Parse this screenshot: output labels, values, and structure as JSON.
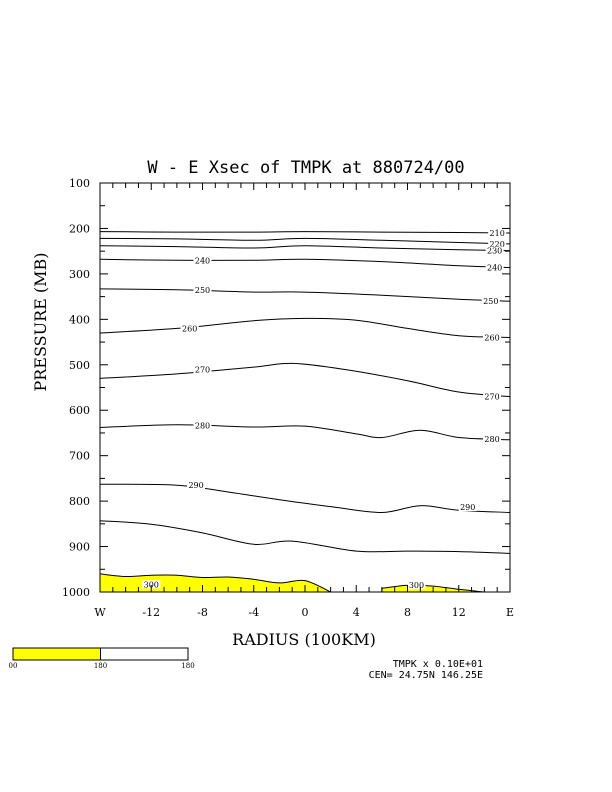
{
  "chart_data": {
    "type": "line",
    "title": "W - E Xsec of TMPK at 880724/00",
    "xlabel": "RADIUS (100KM)",
    "ylabel": "PRESSURE (MB)",
    "x_ticks": [
      "W",
      "-12",
      "-8",
      "-4",
      "0",
      "4",
      "8",
      "12",
      "E"
    ],
    "y_ticks": [
      "100",
      "200",
      "300",
      "400",
      "500",
      "600",
      "700",
      "800",
      "900",
      "1000"
    ],
    "xlim": [
      -16,
      16
    ],
    "ylim": [
      1000,
      100
    ],
    "contour_interval": 5,
    "series": [
      {
        "name": "210",
        "x": [
          -16,
          -10,
          -4,
          0,
          6,
          12,
          16
        ],
        "y": [
          207,
          208,
          208,
          207,
          208,
          209,
          210
        ]
      },
      {
        "name": "220",
        "x": [
          -16,
          -10,
          -4,
          0,
          6,
          12,
          16
        ],
        "y": [
          222,
          223,
          226,
          222,
          226,
          231,
          234
        ]
      },
      {
        "name": "230",
        "x": [
          -16,
          -10,
          -4,
          0,
          6,
          12,
          16
        ],
        "y": [
          238,
          240,
          243,
          238,
          243,
          247,
          249
        ]
      },
      {
        "name": "240",
        "x": [
          -16,
          -10,
          -4,
          0,
          6,
          12,
          16
        ],
        "y": [
          268,
          270,
          270,
          268,
          273,
          282,
          286
        ]
      },
      {
        "name": "250",
        "x": [
          -16,
          -10,
          -4,
          0,
          6,
          12,
          16
        ],
        "y": [
          333,
          335,
          340,
          340,
          347,
          356,
          360
        ]
      },
      {
        "name": "260",
        "x": [
          -16,
          -10,
          -4,
          0,
          4,
          8,
          12,
          16
        ],
        "y": [
          430,
          420,
          403,
          398,
          402,
          420,
          436,
          440
        ]
      },
      {
        "name": "270",
        "x": [
          -16,
          -10,
          -4,
          -1,
          3,
          8,
          12,
          16
        ],
        "y": [
          530,
          520,
          505,
          497,
          510,
          535,
          560,
          570
        ]
      },
      {
        "name": "280",
        "x": [
          -16,
          -10,
          -4,
          0,
          4,
          6,
          9,
          12,
          16
        ],
        "y": [
          638,
          632,
          637,
          635,
          652,
          660,
          644,
          660,
          665
        ]
      },
      {
        "name": "290",
        "x": [
          -16,
          -10,
          -6,
          -2,
          2,
          6,
          9,
          12,
          16
        ],
        "y": [
          763,
          765,
          780,
          797,
          812,
          825,
          810,
          820,
          825
        ]
      },
      {
        "name": "300",
        "x": [
          -16,
          -12,
          -8,
          -4,
          -1,
          4,
          8,
          12,
          16
        ],
        "y": [
          843,
          851,
          870,
          895,
          888,
          910,
          910,
          911,
          915
        ]
      }
    ],
    "contour_labels": [
      {
        "text": "210",
        "x": 15.0,
        "y": 210
      },
      {
        "text": "220",
        "x": 15.0,
        "y": 234
      },
      {
        "text": "230",
        "x": 14.8,
        "y": 249
      },
      {
        "text": "240",
        "x": -8.0,
        "y": 270
      },
      {
        "text": "240",
        "x": 14.8,
        "y": 286
      },
      {
        "text": "250",
        "x": -8.0,
        "y": 335
      },
      {
        "text": "250",
        "x": 14.5,
        "y": 360
      },
      {
        "text": "260",
        "x": -9.0,
        "y": 420
      },
      {
        "text": "260",
        "x": 14.6,
        "y": 440
      },
      {
        "text": "270",
        "x": -8.0,
        "y": 510
      },
      {
        "text": "270",
        "x": 14.6,
        "y": 570
      },
      {
        "text": "280",
        "x": -8.0,
        "y": 634
      },
      {
        "text": "280",
        "x": 14.6,
        "y": 663
      },
      {
        "text": "290",
        "x": -8.5,
        "y": 765
      },
      {
        "text": "290",
        "x": 12.7,
        "y": 813
      },
      {
        "text": "300",
        "x": -12.0,
        "y": 983
      },
      {
        "text": "300",
        "x": 8.7,
        "y": 985
      }
    ],
    "shaded_regions": [
      {
        "level": "300",
        "x": [
          -16,
          -14,
          -12,
          -10,
          -8,
          -6,
          -4,
          -2,
          0,
          2
        ],
        "y": [
          960,
          966,
          963,
          963,
          968,
          967,
          972,
          980,
          975,
          1000
        ]
      },
      {
        "level": "300",
        "x": [
          6,
          8,
          10,
          12,
          14
        ],
        "y": [
          992,
          985,
          987,
          994,
          1000
        ]
      }
    ],
    "legend": {
      "colors": [
        "#ffff00",
        "#ffffff"
      ],
      "labels": [
        "00",
        "180",
        "180"
      ]
    }
  },
  "footer": {
    "scale_text": "TMPK x  0.10E+01",
    "center_text": "CEN= 24.75N  146.25E"
  },
  "colors": {
    "fill": "#ffff00",
    "line": "#000000"
  }
}
